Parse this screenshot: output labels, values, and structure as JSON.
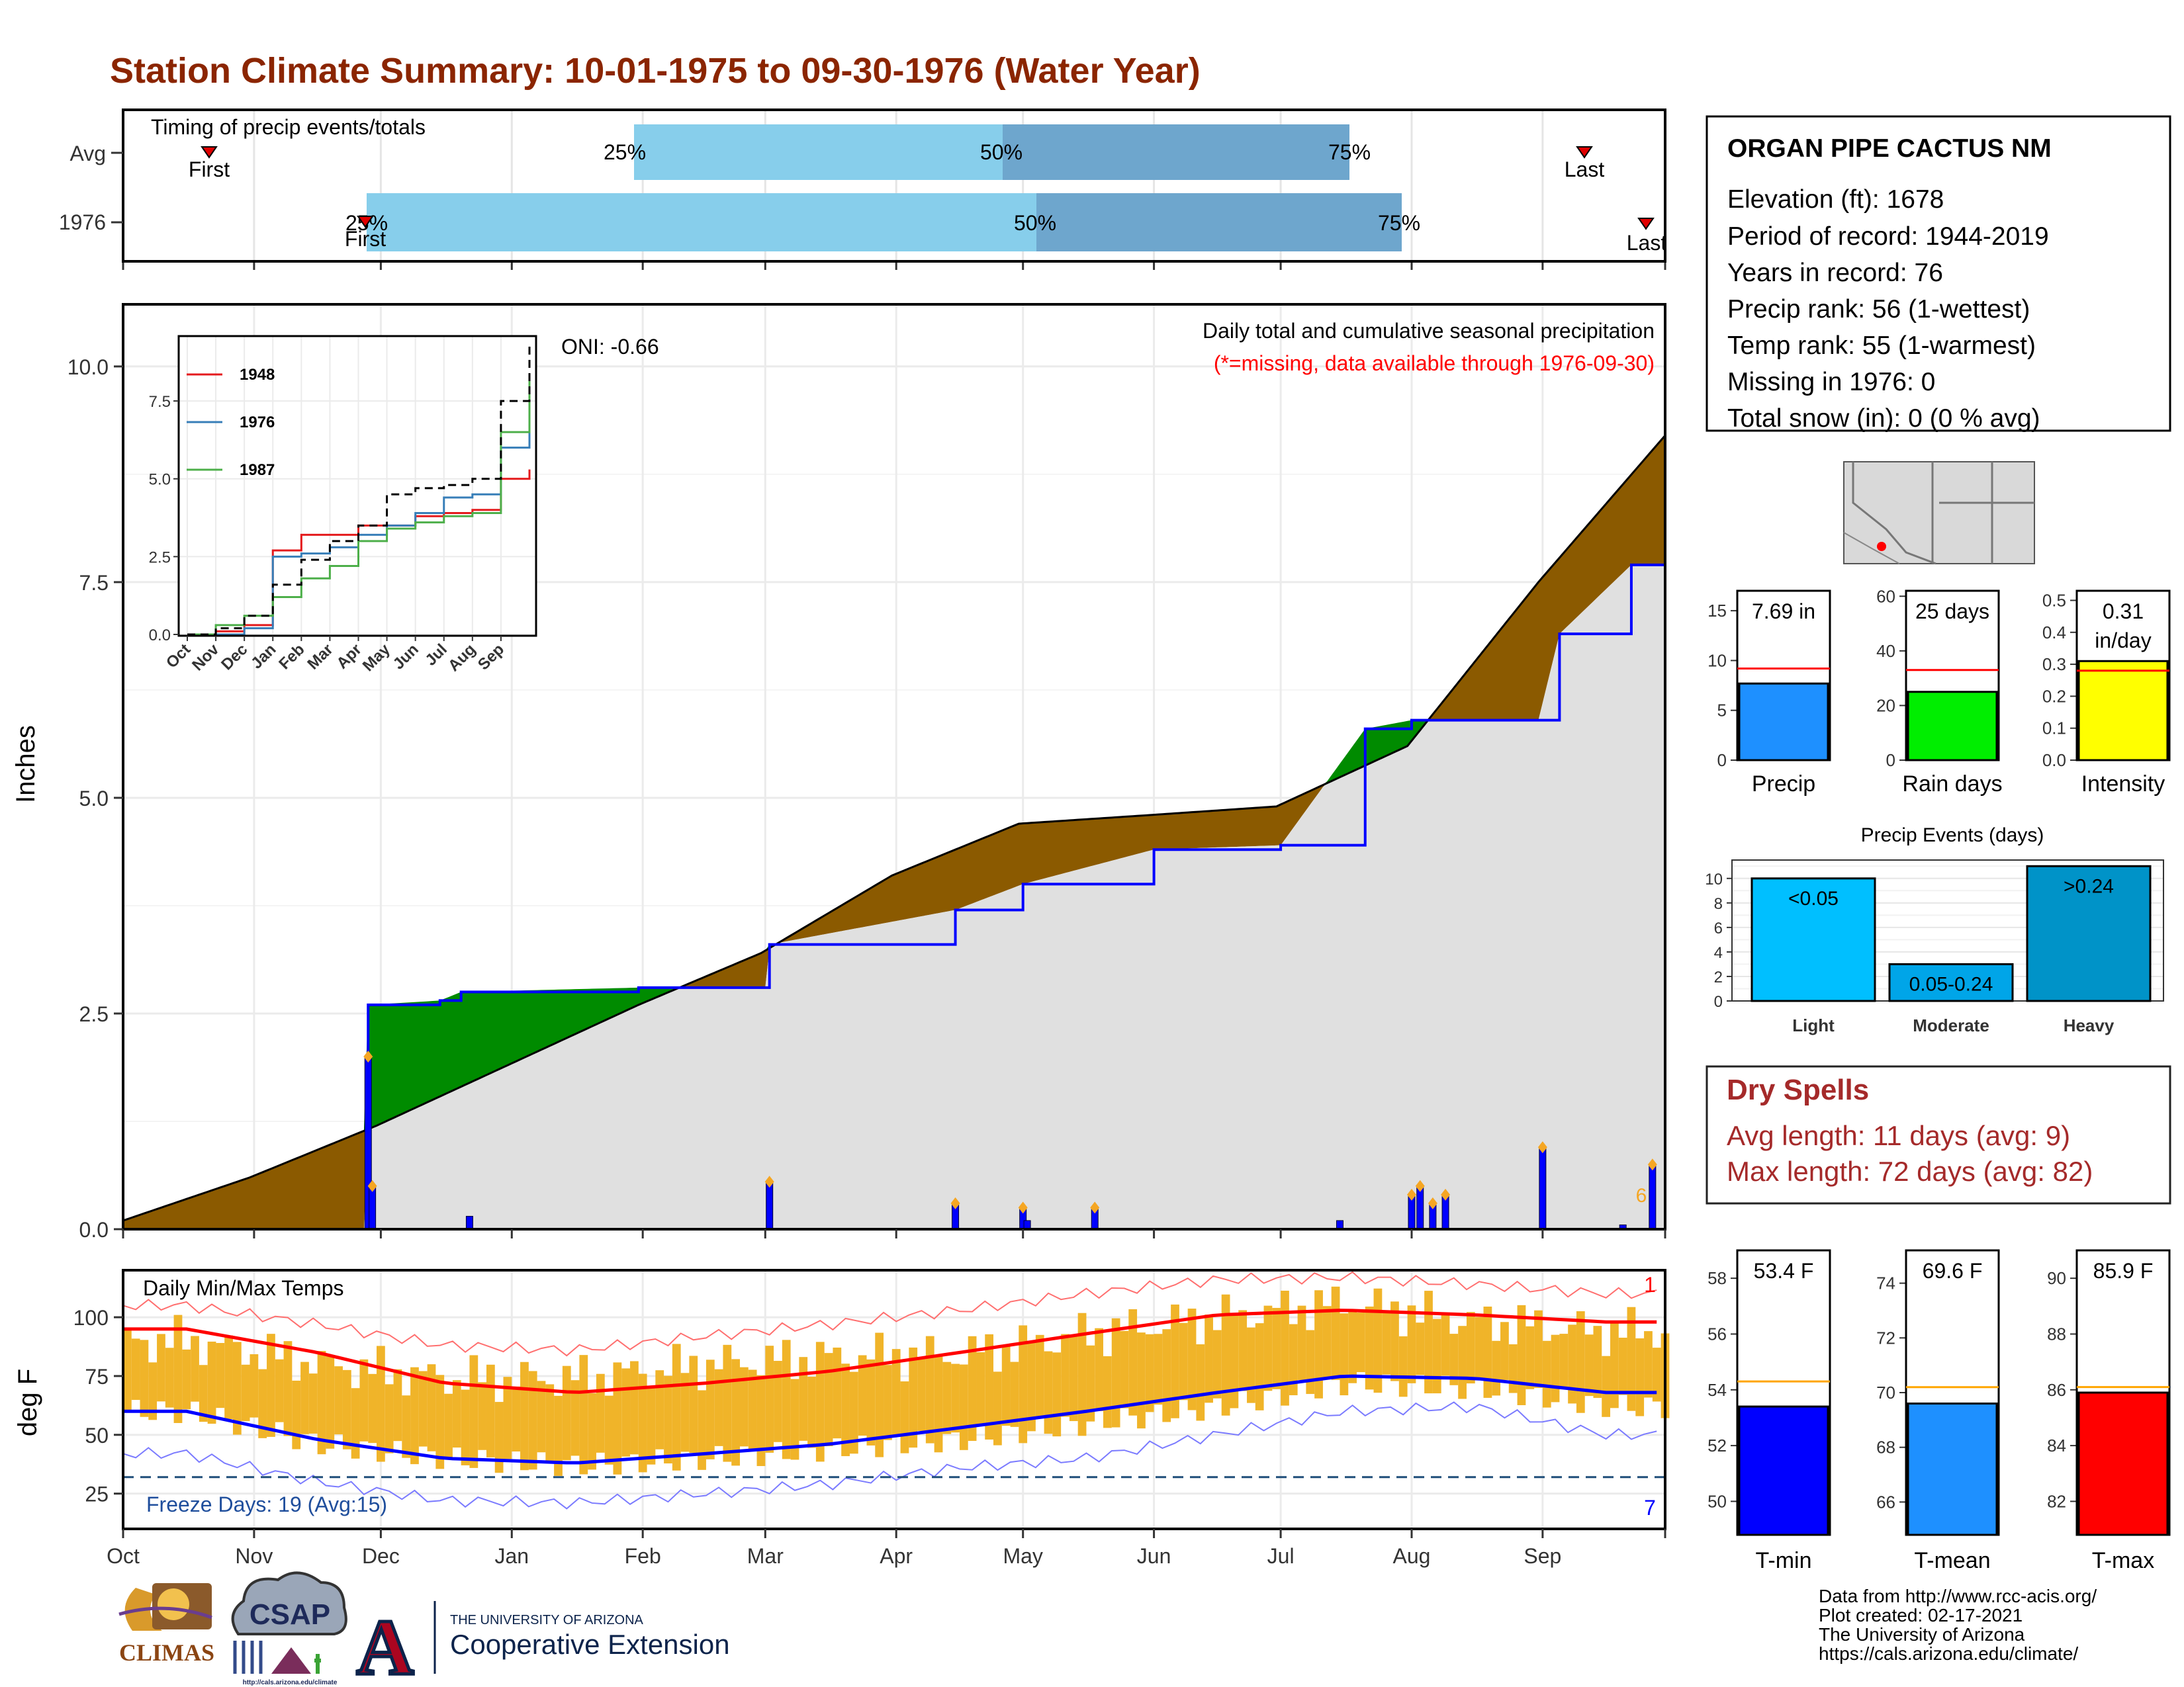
{
  "title": "Station Climate Summary: 10-01-1975 to 09-30-1976 (Water Year)",
  "timing": {
    "label": "Timing of precip events/totals",
    "rows": [
      {
        "name": "Avg",
        "first": "First",
        "last": "Last",
        "q25": "25%",
        "q50": "50%",
        "q75": "75%"
      },
      {
        "name": "1976",
        "first": "First",
        "last": "Last",
        "q25": "25%",
        "q50": "50%",
        "q75": "75%"
      }
    ]
  },
  "main_chart": {
    "ylabel": "Inches",
    "yticks": [
      "0.0",
      "2.5",
      "5.0",
      "7.5",
      "10.0"
    ],
    "months": [
      "Oct",
      "Nov",
      "Dec",
      "Jan",
      "Feb",
      "Mar",
      "Apr",
      "May",
      "Jun",
      "Jul",
      "Aug",
      "Sep"
    ],
    "subtitle": "Daily total and cumulative seasonal precipitation",
    "missing_note": "(*=missing, data available through 1976-09-30)",
    "oni": "ONI: -0.66",
    "corner_mark": "6"
  },
  "chart_data": [
    {
      "type": "area",
      "name": "cumulative precipitation",
      "ylim": [
        0,
        10
      ],
      "series": [
        {
          "name": "Average cumulative (inches)",
          "x": [
            "10-01",
            "10-31",
            "11-30",
            "12-31",
            "01-31",
            "02-29",
            "03-31",
            "04-30",
            "05-31",
            "06-30",
            "07-31",
            "08-31",
            "09-30"
          ],
          "values": [
            0.1,
            0.6,
            1.2,
            1.9,
            2.6,
            3.2,
            4.1,
            4.7,
            4.8,
            4.9,
            5.6,
            7.5,
            9.2
          ]
        },
        {
          "name": "1976 cumulative (inches)",
          "x": [
            "10-01",
            "11-27",
            "11-28",
            "12-15",
            "12-20",
            "01-31",
            "03-01",
            "03-02",
            "04-15",
            "05-01",
            "06-01",
            "07-01",
            "07-21",
            "08-01",
            "08-31",
            "09-05",
            "09-22",
            "09-30"
          ],
          "values": [
            0.0,
            0.0,
            2.6,
            2.65,
            2.75,
            2.8,
            2.8,
            3.3,
            3.7,
            4.0,
            4.4,
            4.45,
            5.8,
            5.9,
            5.9,
            6.9,
            7.7,
            7.7
          ]
        }
      ],
      "daily_bars": {
        "dates": [
          "11-28",
          "11-29",
          "12-22",
          "03-02",
          "04-15",
          "05-01",
          "05-02",
          "05-18",
          "07-15",
          "08-01",
          "08-03",
          "08-06",
          "08-09",
          "09-01",
          "09-20",
          "09-27"
        ],
        "values": [
          2.0,
          0.5,
          0.15,
          0.55,
          0.3,
          0.25,
          0.1,
          0.25,
          0.1,
          0.4,
          0.5,
          0.3,
          0.4,
          0.95,
          0.05,
          0.75
        ]
      }
    },
    {
      "type": "line",
      "name": "inset cumulative comparison",
      "categories": [
        "Oct",
        "Nov",
        "Dec",
        "Jan",
        "Feb",
        "Mar",
        "Apr",
        "May",
        "Jun",
        "Jul",
        "Aug",
        "Sep"
      ],
      "ylim": [
        0,
        9.5
      ],
      "yticks": [
        "0.0",
        "2.5",
        "5.0",
        "7.5"
      ],
      "series": [
        {
          "name": "1948",
          "color": "#e41a1c",
          "values": [
            0.1,
            0.3,
            2.7,
            3.2,
            3.2,
            3.5,
            3.5,
            3.8,
            3.9,
            4.0,
            5.0,
            5.3
          ]
        },
        {
          "name": "1976",
          "color": "#377eb8",
          "values": [
            0.0,
            0.2,
            2.5,
            2.6,
            2.8,
            3.2,
            3.5,
            3.9,
            4.4,
            4.5,
            6.0,
            7.5
          ]
        },
        {
          "name": "1987",
          "color": "#4daf4a",
          "values": [
            0.3,
            0.6,
            1.2,
            1.8,
            2.2,
            3.0,
            3.4,
            3.6,
            3.8,
            3.9,
            6.5,
            8.2
          ]
        },
        {
          "name": "",
          "color": "#000000",
          "values": [
            0.2,
            0.6,
            1.6,
            2.4,
            3.0,
            3.5,
            4.5,
            4.7,
            4.8,
            5.0,
            7.5,
            9.3
          ]
        }
      ]
    },
    {
      "type": "bar",
      "name": "totals",
      "panels": [
        {
          "label": "Precip",
          "value": 7.69,
          "avg": 9.2,
          "ylim": [
            0,
            17
          ],
          "yticks": [
            "0",
            "5",
            "10",
            "15"
          ],
          "text": "7.69 in",
          "color": "#1e90ff"
        },
        {
          "label": "Rain days",
          "value": 25,
          "avg": 33,
          "ylim": [
            0,
            62
          ],
          "yticks": [
            "0",
            "20",
            "40",
            "60"
          ],
          "text": "25 days",
          "color": "#00ee00"
        },
        {
          "label": "Intensity",
          "value": 0.31,
          "avg": 0.28,
          "ylim": [
            0,
            0.53
          ],
          "yticks": [
            "0.0",
            "0.1",
            "0.2",
            "0.3",
            "0.4",
            "0.5"
          ],
          "text": "0.31",
          "text2": "in/day",
          "color": "#ffff00"
        }
      ]
    },
    {
      "type": "bar",
      "name": "precip events",
      "title": "Precip Events (days)",
      "categories": [
        "Light",
        "Moderate",
        "Heavy"
      ],
      "bar_labels": [
        "<0.05",
        "0.05-0.24",
        ">0.24"
      ],
      "values": [
        10,
        3,
        11
      ],
      "colors": [
        "#00bfff",
        "#00a5e8",
        "#0093c8"
      ],
      "ylim": [
        0,
        11.5
      ],
      "yticks": [
        "0",
        "2",
        "4",
        "6",
        "8",
        "10"
      ]
    },
    {
      "type": "bar",
      "name": "temperature summary",
      "panels": [
        {
          "label": "T-min",
          "value": 53.4,
          "avg": 54.3,
          "ylim": [
            48.8,
            59.0
          ],
          "yticks": [
            "50",
            "52",
            "54",
            "56",
            "58"
          ],
          "text": "53.4 F",
          "color": "#0000ff"
        },
        {
          "label": "T-mean",
          "value": 69.6,
          "avg": 70.2,
          "ylim": [
            64.8,
            75.2
          ],
          "yticks": [
            "66",
            "68",
            "70",
            "72",
            "74"
          ],
          "text": "69.6 F",
          "color": "#1e90ff"
        },
        {
          "label": "T-max",
          "value": 85.9,
          "avg": 86.1,
          "ylim": [
            80.8,
            91.0
          ],
          "yticks": [
            "82",
            "84",
            "86",
            "88",
            "90"
          ],
          "text": "85.9 F",
          "color": "#ff0000"
        }
      ]
    },
    {
      "type": "bar",
      "name": "daily min/max temps",
      "ylabel": "deg F",
      "yticks": [
        "25",
        "50",
        "75",
        "100"
      ],
      "ylim": [
        10,
        120
      ],
      "months": [
        "Oct",
        "Nov",
        "Dec",
        "Jan",
        "Feb",
        "Mar",
        "Apr",
        "May",
        "Jun",
        "Jul",
        "Aug",
        "Sep"
      ],
      "avg_max_monthly": [
        95,
        85,
        72,
        68,
        72,
        77,
        85,
        93,
        101,
        103,
        101,
        98
      ],
      "avg_min_monthly": [
        60,
        48,
        40,
        38,
        42,
        46,
        53,
        60,
        68,
        75,
        74,
        68
      ],
      "record_max_monthly": [
        105,
        97,
        88,
        86,
        92,
        97,
        103,
        110,
        116,
        117,
        114,
        110
      ],
      "record_min_monthly": [
        42,
        30,
        22,
        21,
        25,
        29,
        36,
        40,
        50,
        60,
        62,
        50
      ],
      "obs_max_monthly": [
        90,
        80,
        74,
        74,
        80,
        83,
        84,
        93,
        100,
        106,
        98,
        94
      ],
      "obs_min_monthly": [
        60,
        46,
        40,
        37,
        40,
        44,
        48,
        55,
        62,
        72,
        70,
        62
      ],
      "freeze_line": 32
    }
  ],
  "temps": {
    "title": "Daily Min/Max Temps",
    "freeze": "Freeze Days: 19 (Avg:15)",
    "record_high_count": "1",
    "record_low_count": "7"
  },
  "station": {
    "name": "ORGAN PIPE CACTUS NM",
    "lines": [
      "Elevation (ft): 1678",
      "Period of record: 1944-2019",
      "Years in record: 76",
      "Precip rank: 56 (1-wettest)",
      "Temp rank: 55 (1-warmest)",
      "Missing in 1976: 0",
      "Total snow (in): 0 (0 % avg)"
    ]
  },
  "dry_spells": {
    "title": "Dry Spells",
    "avg": "Avg length: 11 days (avg: 9)",
    "max": "Max length: 72 days (avg: 82)"
  },
  "footer": {
    "lines": [
      "Data from http://www.rcc-acis.org/",
      "Plot created: 02-17-2021",
      "The University of Arizona",
      "https://cals.arizona.edu/climate/"
    ]
  },
  "logos": {
    "climas": "CLIMAS",
    "csap": "CSAP",
    "csap_url": "http://cals.arizona.edu/climate",
    "ua_small": "THE UNIVERSITY OF ARIZONA",
    "ua_big": "Cooperative Extension",
    "ua_letter": "A"
  },
  "colors": {
    "title": "#8b2500",
    "deficit": "#8b5a00",
    "surplus": "#008b00",
    "area": "#e0e0e0",
    "line_blue": "#0000ff",
    "missing": "#ff0000",
    "temp_bars": "#f0b429",
    "dry_spells": "#a52a2a"
  }
}
